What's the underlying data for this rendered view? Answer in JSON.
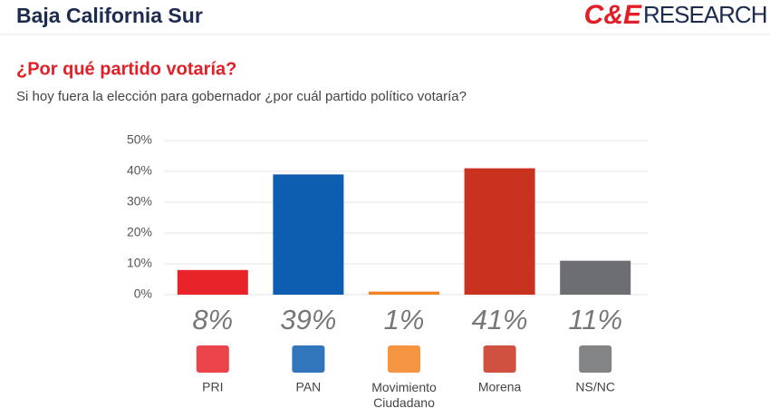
{
  "brand": {
    "left": "C&E",
    "right": "RESEARCH"
  },
  "chart_data": {
    "type": "bar",
    "title": "Baja California Sur",
    "subtitle": "¿Por qué partido votaría?",
    "question": "Si hoy fuera la elección para gobernador ¿por cuál partido político votaría?",
    "categories": [
      "PRI",
      "PAN",
      "Movimiento Ciudadano",
      "Morena",
      "NS/NC"
    ],
    "values": [
      8,
      39,
      1,
      41,
      11
    ],
    "value_labels": [
      "8%",
      "39%",
      "1%",
      "41%",
      "11%"
    ],
    "colors": [
      "#e8232a",
      "#0d5db0",
      "#f58220",
      "#c8321f",
      "#6d6e71"
    ],
    "ylim": [
      0,
      50
    ],
    "yticks": [
      {
        "value": 0,
        "label": "0%"
      },
      {
        "value": 10,
        "label": "10%"
      },
      {
        "value": 20,
        "label": "20%"
      },
      {
        "value": 30,
        "label": "30%"
      },
      {
        "value": 40,
        "label": "40%"
      },
      {
        "value": 50,
        "label": "50%"
      }
    ],
    "grid": true
  }
}
